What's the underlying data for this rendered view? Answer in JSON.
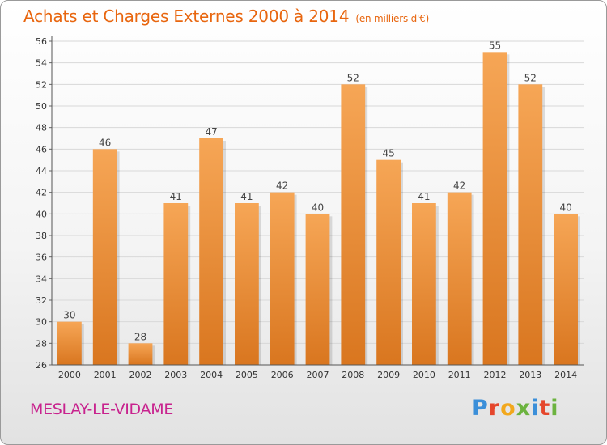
{
  "header": {
    "title": "Achats et Charges Externes 2000 à 2014",
    "unit": "(en milliers d'€)"
  },
  "footer": {
    "commune": "MESLAY-LE-VIDAME",
    "logo_letters": [
      "P",
      "r",
      "o",
      "x",
      "i",
      "t",
      "i"
    ],
    "logo_colors": [
      "#3b8fd9",
      "#e5462c",
      "#f2a81d",
      "#6cb33f",
      "#3b8fd9",
      "#e5462c",
      "#6cb33f"
    ]
  },
  "colors": {
    "bar_top": "#f6a656",
    "bar_bottom": "#d9761f",
    "grid": "#d8d8d8",
    "title": "#e8660f",
    "commune": "#c8238e"
  },
  "chart_data": {
    "type": "bar",
    "title": "Achats et Charges Externes 2000 à 2014",
    "subtitle": "(en milliers d'€)",
    "categories": [
      "2000",
      "2001",
      "2002",
      "2003",
      "2004",
      "2005",
      "2006",
      "2007",
      "2008",
      "2009",
      "2010",
      "2011",
      "2012",
      "2013",
      "2014"
    ],
    "values": [
      30,
      46,
      28,
      41,
      47,
      41,
      42,
      40,
      52,
      45,
      41,
      42,
      55,
      52,
      40
    ],
    "ylim": [
      26,
      56
    ],
    "yticks": [
      26,
      28,
      30,
      32,
      34,
      36,
      38,
      40,
      42,
      44,
      46,
      48,
      50,
      52,
      54,
      56
    ],
    "grid": true,
    "data_labels": true
  }
}
